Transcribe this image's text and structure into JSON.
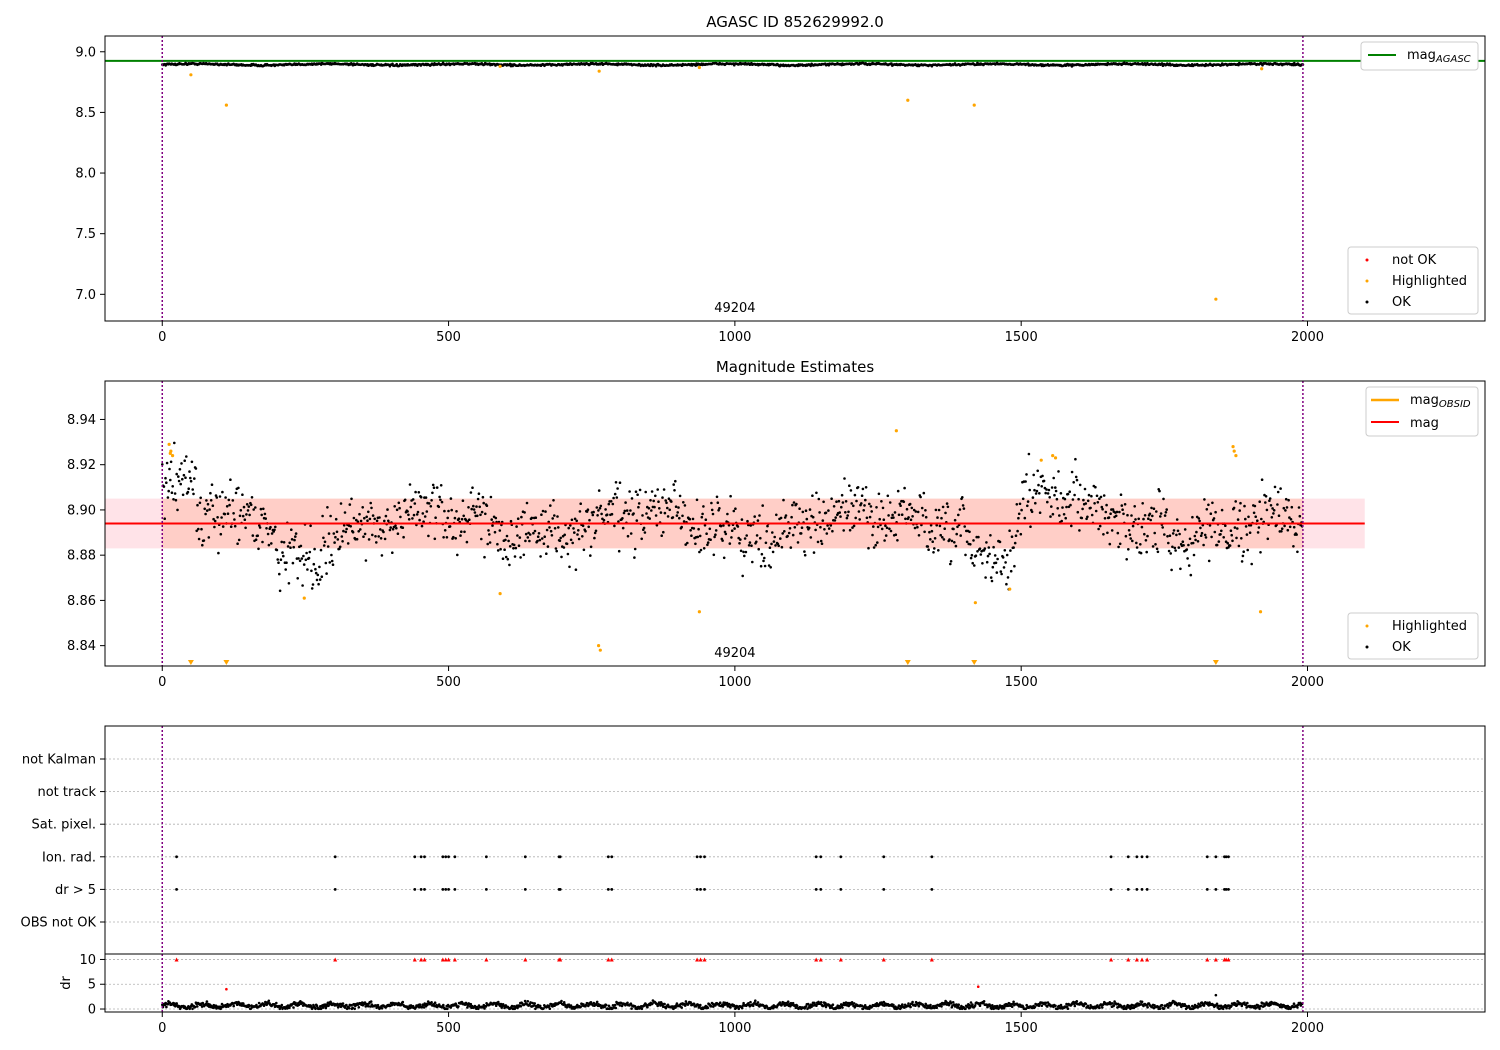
{
  "chart_data": [
    {
      "type": "scatter",
      "title": "AGASC ID 852629992.0",
      "xlim": [
        -100,
        2310
      ],
      "ylim": [
        6.78,
        9.13
      ],
      "x_ticks": [
        "0",
        "500",
        "1000",
        "1500",
        "2000"
      ],
      "y_ticks": [
        "7.0",
        "7.5",
        "8.0",
        "8.5",
        "9.0"
      ],
      "y_tick_values": [
        7.0,
        7.5,
        8.0,
        8.5,
        9.0
      ],
      "obsid_label": "49204",
      "obsid_label_x": 1000,
      "obsid_bounds": [
        0,
        1992
      ],
      "mag_agasc": 8.925,
      "legend_line": {
        "main": "mag",
        "sub": "AGASC"
      },
      "legend_points": [
        "not OK",
        "Highlighted",
        "OK"
      ],
      "highlighted_points": [
        [
          50,
          8.81
        ],
        [
          112,
          8.56
        ],
        [
          590,
          8.88
        ],
        [
          763,
          8.84
        ],
        [
          938,
          8.87
        ],
        [
          1302,
          8.6
        ],
        [
          1418,
          8.56
        ],
        [
          1840,
          6.96
        ],
        [
          1920,
          8.86
        ]
      ],
      "ok_series": {
        "start": 0,
        "end": 1992,
        "baseline": 8.895,
        "amplitude": 0.012
      },
      "colors": {
        "agasc_line": "#008000",
        "ok": "#000000",
        "highlighted": "#ffa500",
        "not_ok": "#ff0000",
        "bounds": "#800080"
      }
    },
    {
      "type": "scatter",
      "title": "Magnitude Estimates",
      "xlim": [
        -100,
        2310
      ],
      "ylim": [
        8.831,
        8.957
      ],
      "x_ticks": [
        "0",
        "500",
        "1000",
        "1500",
        "2000"
      ],
      "y_ticks": [
        "8.84",
        "8.86",
        "8.88",
        "8.90",
        "8.92",
        "8.94"
      ],
      "y_tick_values": [
        8.84,
        8.86,
        8.88,
        8.9,
        8.92,
        8.94
      ],
      "obsid_label": "49204",
      "obsid_label_x": 1000,
      "mag": 8.894,
      "mag_band": [
        8.883,
        8.905
      ],
      "mag_band_x": [
        -100,
        2100
      ],
      "mag_obsid": 8.894,
      "mag_obsid_band": [
        8.883,
        8.905
      ],
      "mag_obsid_band_x": [
        0,
        1992
      ],
      "legend_lines": [
        {
          "main": "mag",
          "sub": "OBSID"
        },
        {
          "main": "mag",
          "sub": ""
        }
      ],
      "legend_points": [
        "Highlighted",
        "OK"
      ],
      "highlighted_points": [
        [
          12,
          8.929
        ],
        [
          15,
          8.926
        ],
        [
          14,
          8.925
        ],
        [
          18,
          8.924
        ],
        [
          248,
          8.861
        ],
        [
          590,
          8.863
        ],
        [
          762,
          8.84
        ],
        [
          765,
          8.838
        ],
        [
          938,
          8.855
        ],
        [
          1282,
          8.935
        ],
        [
          1420,
          8.859
        ],
        [
          1480,
          8.865
        ],
        [
          1535,
          8.922
        ],
        [
          1555,
          8.924
        ],
        [
          1560,
          8.923
        ],
        [
          1870,
          8.928
        ],
        [
          1872,
          8.926
        ],
        [
          1875,
          8.924
        ],
        [
          1918,
          8.855
        ]
      ],
      "below_range_markers": [
        50,
        112,
        1302,
        1418,
        1840
      ],
      "ok_series": {
        "start": 0,
        "end": 1992,
        "baseline": 8.894,
        "spread": 0.007
      },
      "colors": {
        "mag": "#ff0000",
        "mag_obsid": "#ffa500",
        "mag_band": "#ffc0cb",
        "mag_obsid_band": "#ffa07a",
        "ok": "#000000",
        "highlighted": "#ffa500",
        "bounds": "#800080"
      }
    },
    {
      "type": "scatter",
      "title": "",
      "xlim": [
        -100,
        2310
      ],
      "flag_rows": [
        "not Kalman",
        "not track",
        "Sat. pixel.",
        "Ion. rad.",
        "dr > 5",
        "OBS not OK"
      ],
      "flag_events_x": [
        25,
        302,
        441,
        452,
        458,
        490,
        495,
        500,
        511,
        566,
        634,
        693,
        695,
        779,
        785,
        934,
        940,
        947,
        1142,
        1150,
        1185,
        1260,
        1344,
        1657,
        1687,
        1702,
        1711,
        1720,
        1825,
        1840,
        1855,
        1858,
        1862
      ],
      "flag_event_rows": [
        "Ion. rad.",
        "dr > 5"
      ],
      "dr": {
        "ylabel": "dr",
        "ylim": [
          -0.6,
          11.1
        ],
        "y_ticks": [
          "0",
          "5",
          "10"
        ],
        "y_tick_values": [
          0,
          5,
          10
        ],
        "clipped_value": 10,
        "outliers": [
          [
            112,
            4.0
          ],
          [
            1425,
            4.5
          ],
          [
            1840,
            2.8
          ]
        ],
        "series": {
          "start": 0,
          "end": 1992,
          "typical": 0.7
        }
      },
      "x_ticks": [
        "0",
        "500",
        "1000",
        "1500",
        "2000"
      ],
      "colors": {
        "events": "#000000",
        "dr": "#000000",
        "clipped": "#ff0000",
        "bounds": "#800080",
        "grid": "#b0b0b0"
      }
    }
  ]
}
